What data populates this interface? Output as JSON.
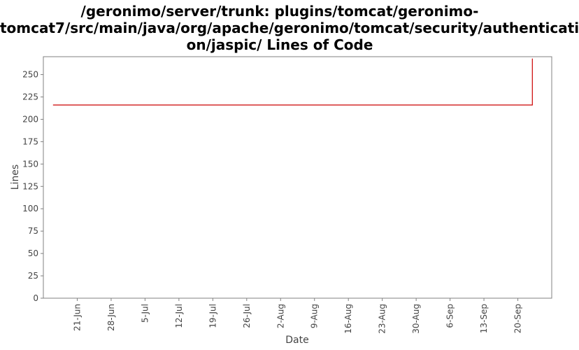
{
  "chart_data": {
    "type": "line",
    "title_lines": [
      "/geronimo/server/trunk: plugins/tomcat/geronimo-",
      "tomcat7/src/main/java/org/apache/geronimo/tomcat/security/authenticati",
      "on/jaspic/ Lines of Code"
    ],
    "xlabel": "Date",
    "ylabel": "Lines",
    "ylim": [
      0,
      270
    ],
    "yticks": [
      0,
      25,
      50,
      75,
      100,
      125,
      150,
      175,
      200,
      225,
      250
    ],
    "xlim": [
      "2011-06-14",
      "2011-09-27"
    ],
    "xticks": [
      {
        "date": "2011-06-21",
        "label": "21-Jun"
      },
      {
        "date": "2011-06-28",
        "label": "28-Jun"
      },
      {
        "date": "2011-07-05",
        "label": "5-Jul"
      },
      {
        "date": "2011-07-12",
        "label": "12-Jul"
      },
      {
        "date": "2011-07-19",
        "label": "19-Jul"
      },
      {
        "date": "2011-07-26",
        "label": "26-Jul"
      },
      {
        "date": "2011-08-02",
        "label": "2-Aug"
      },
      {
        "date": "2011-08-09",
        "label": "9-Aug"
      },
      {
        "date": "2011-08-16",
        "label": "16-Aug"
      },
      {
        "date": "2011-08-23",
        "label": "23-Aug"
      },
      {
        "date": "2011-08-30",
        "label": "30-Aug"
      },
      {
        "date": "2011-09-06",
        "label": "6-Sep"
      },
      {
        "date": "2011-09-13",
        "label": "13-Sep"
      },
      {
        "date": "2011-09-20",
        "label": "20-Sep"
      }
    ],
    "grid": false,
    "series": [
      {
        "color": "#cc0000",
        "points": [
          {
            "x": "2011-06-16",
            "y": 216
          },
          {
            "x": "2011-09-23",
            "y": 216
          },
          {
            "x": "2011-09-23",
            "y": 268
          }
        ]
      }
    ]
  }
}
